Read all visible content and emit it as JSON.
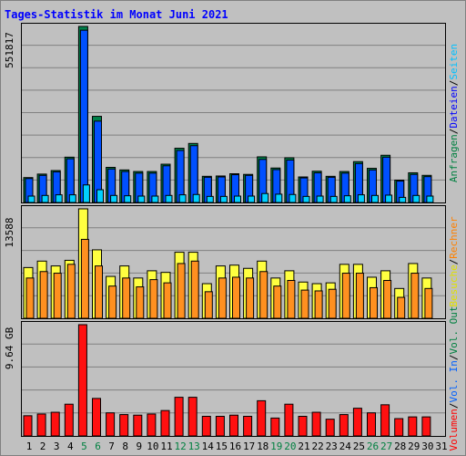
{
  "chart_data": [
    {
      "type": "bar",
      "title": "Tages-Statistik im Monat Juni 2021",
      "ymax_label": "551817",
      "right_labels": [
        {
          "text": "Anfragen",
          "color": "#008040"
        },
        {
          "text": "Dateien",
          "color": "#0000ff"
        },
        {
          "text": "Seiten",
          "color": "#00c0ff"
        }
      ],
      "categories": [
        "1",
        "2",
        "3",
        "4",
        "5",
        "6",
        "7",
        "8",
        "9",
        "10",
        "11",
        "12",
        "13",
        "14",
        "15",
        "16",
        "17",
        "18",
        "19",
        "20",
        "21",
        "22",
        "23",
        "24",
        "25",
        "26",
        "27",
        "28",
        "29",
        "30",
        "31"
      ],
      "series": [
        {
          "name": "Anfragen",
          "values": [
            78000,
            89000,
            100000,
            142000,
            551817,
            270000,
            110000,
            102000,
            97000,
            97000,
            120000,
            170000,
            185000,
            82000,
            83000,
            90000,
            88000,
            143000,
            108000,
            140000,
            80000,
            98000,
            82000,
            97000,
            128000,
            107000,
            148000,
            70000,
            93000,
            85000,
            null
          ]
        },
        {
          "name": "Dateien",
          "values": [
            75000,
            85000,
            96000,
            137000,
            540000,
            255000,
            105000,
            97000,
            92000,
            92000,
            115000,
            163000,
            178000,
            79000,
            80000,
            87000,
            85000,
            135000,
            103000,
            133000,
            77000,
            93000,
            79000,
            92000,
            122000,
            102000,
            142000,
            67000,
            88000,
            81000,
            null
          ]
        },
        {
          "name": "Seiten",
          "values": [
            20000,
            22000,
            24000,
            24000,
            55000,
            40000,
            22000,
            21000,
            20000,
            20000,
            22000,
            24000,
            25000,
            19000,
            19000,
            20000,
            20000,
            28000,
            26000,
            25000,
            19000,
            20000,
            19000,
            21000,
            24000,
            22000,
            23000,
            16000,
            22000,
            20000,
            null
          ]
        }
      ]
    },
    {
      "type": "bar",
      "ymax_label": "13588",
      "right_labels": [
        {
          "text": "Besuche",
          "color": "#e0e000"
        },
        {
          "text": "Rechner",
          "color": "#ff8000"
        }
      ],
      "series": [
        {
          "name": "Besuche",
          "values": [
            6300,
            7100,
            6500,
            7200,
            13588,
            8500,
            5200,
            6500,
            5000,
            5900,
            5700,
            8200,
            8200,
            4300,
            6500,
            6600,
            6200,
            7100,
            5000,
            5900,
            4500,
            4300,
            4400,
            6700,
            6700,
            5100,
            5900,
            3700,
            6800,
            5000,
            null
          ]
        },
        {
          "name": "Rechner",
          "values": [
            5000,
            5800,
            5600,
            6700,
            9800,
            6500,
            4000,
            5000,
            3900,
            4800,
            4400,
            6800,
            7100,
            3300,
            5000,
            5100,
            5000,
            5800,
            4000,
            4700,
            3500,
            3400,
            3600,
            5600,
            5600,
            3800,
            4700,
            2600,
            5600,
            3700,
            null
          ]
        }
      ]
    },
    {
      "type": "bar",
      "ymax_label": "9.64 GB",
      "right_labels": [
        {
          "text": "Volumen",
          "color": "#ff0000"
        },
        {
          "text": "Vol. In",
          "color": "#0060ff"
        },
        {
          "text": "Vol. Out",
          "color": "#008040"
        }
      ],
      "series": [
        {
          "name": "Volumen",
          "values": [
            1.75,
            1.9,
            2.05,
            2.75,
            9.64,
            3.25,
            2.0,
            1.85,
            1.8,
            1.9,
            2.2,
            3.35,
            3.35,
            1.7,
            1.7,
            1.8,
            1.7,
            3.05,
            1.55,
            2.75,
            1.7,
            2.05,
            1.45,
            1.85,
            2.4,
            2.0,
            2.7,
            1.5,
            1.65,
            1.65,
            null
          ]
        }
      ]
    }
  ],
  "weekend_days": [
    5,
    6,
    12,
    13,
    19,
    20,
    26,
    27
  ]
}
